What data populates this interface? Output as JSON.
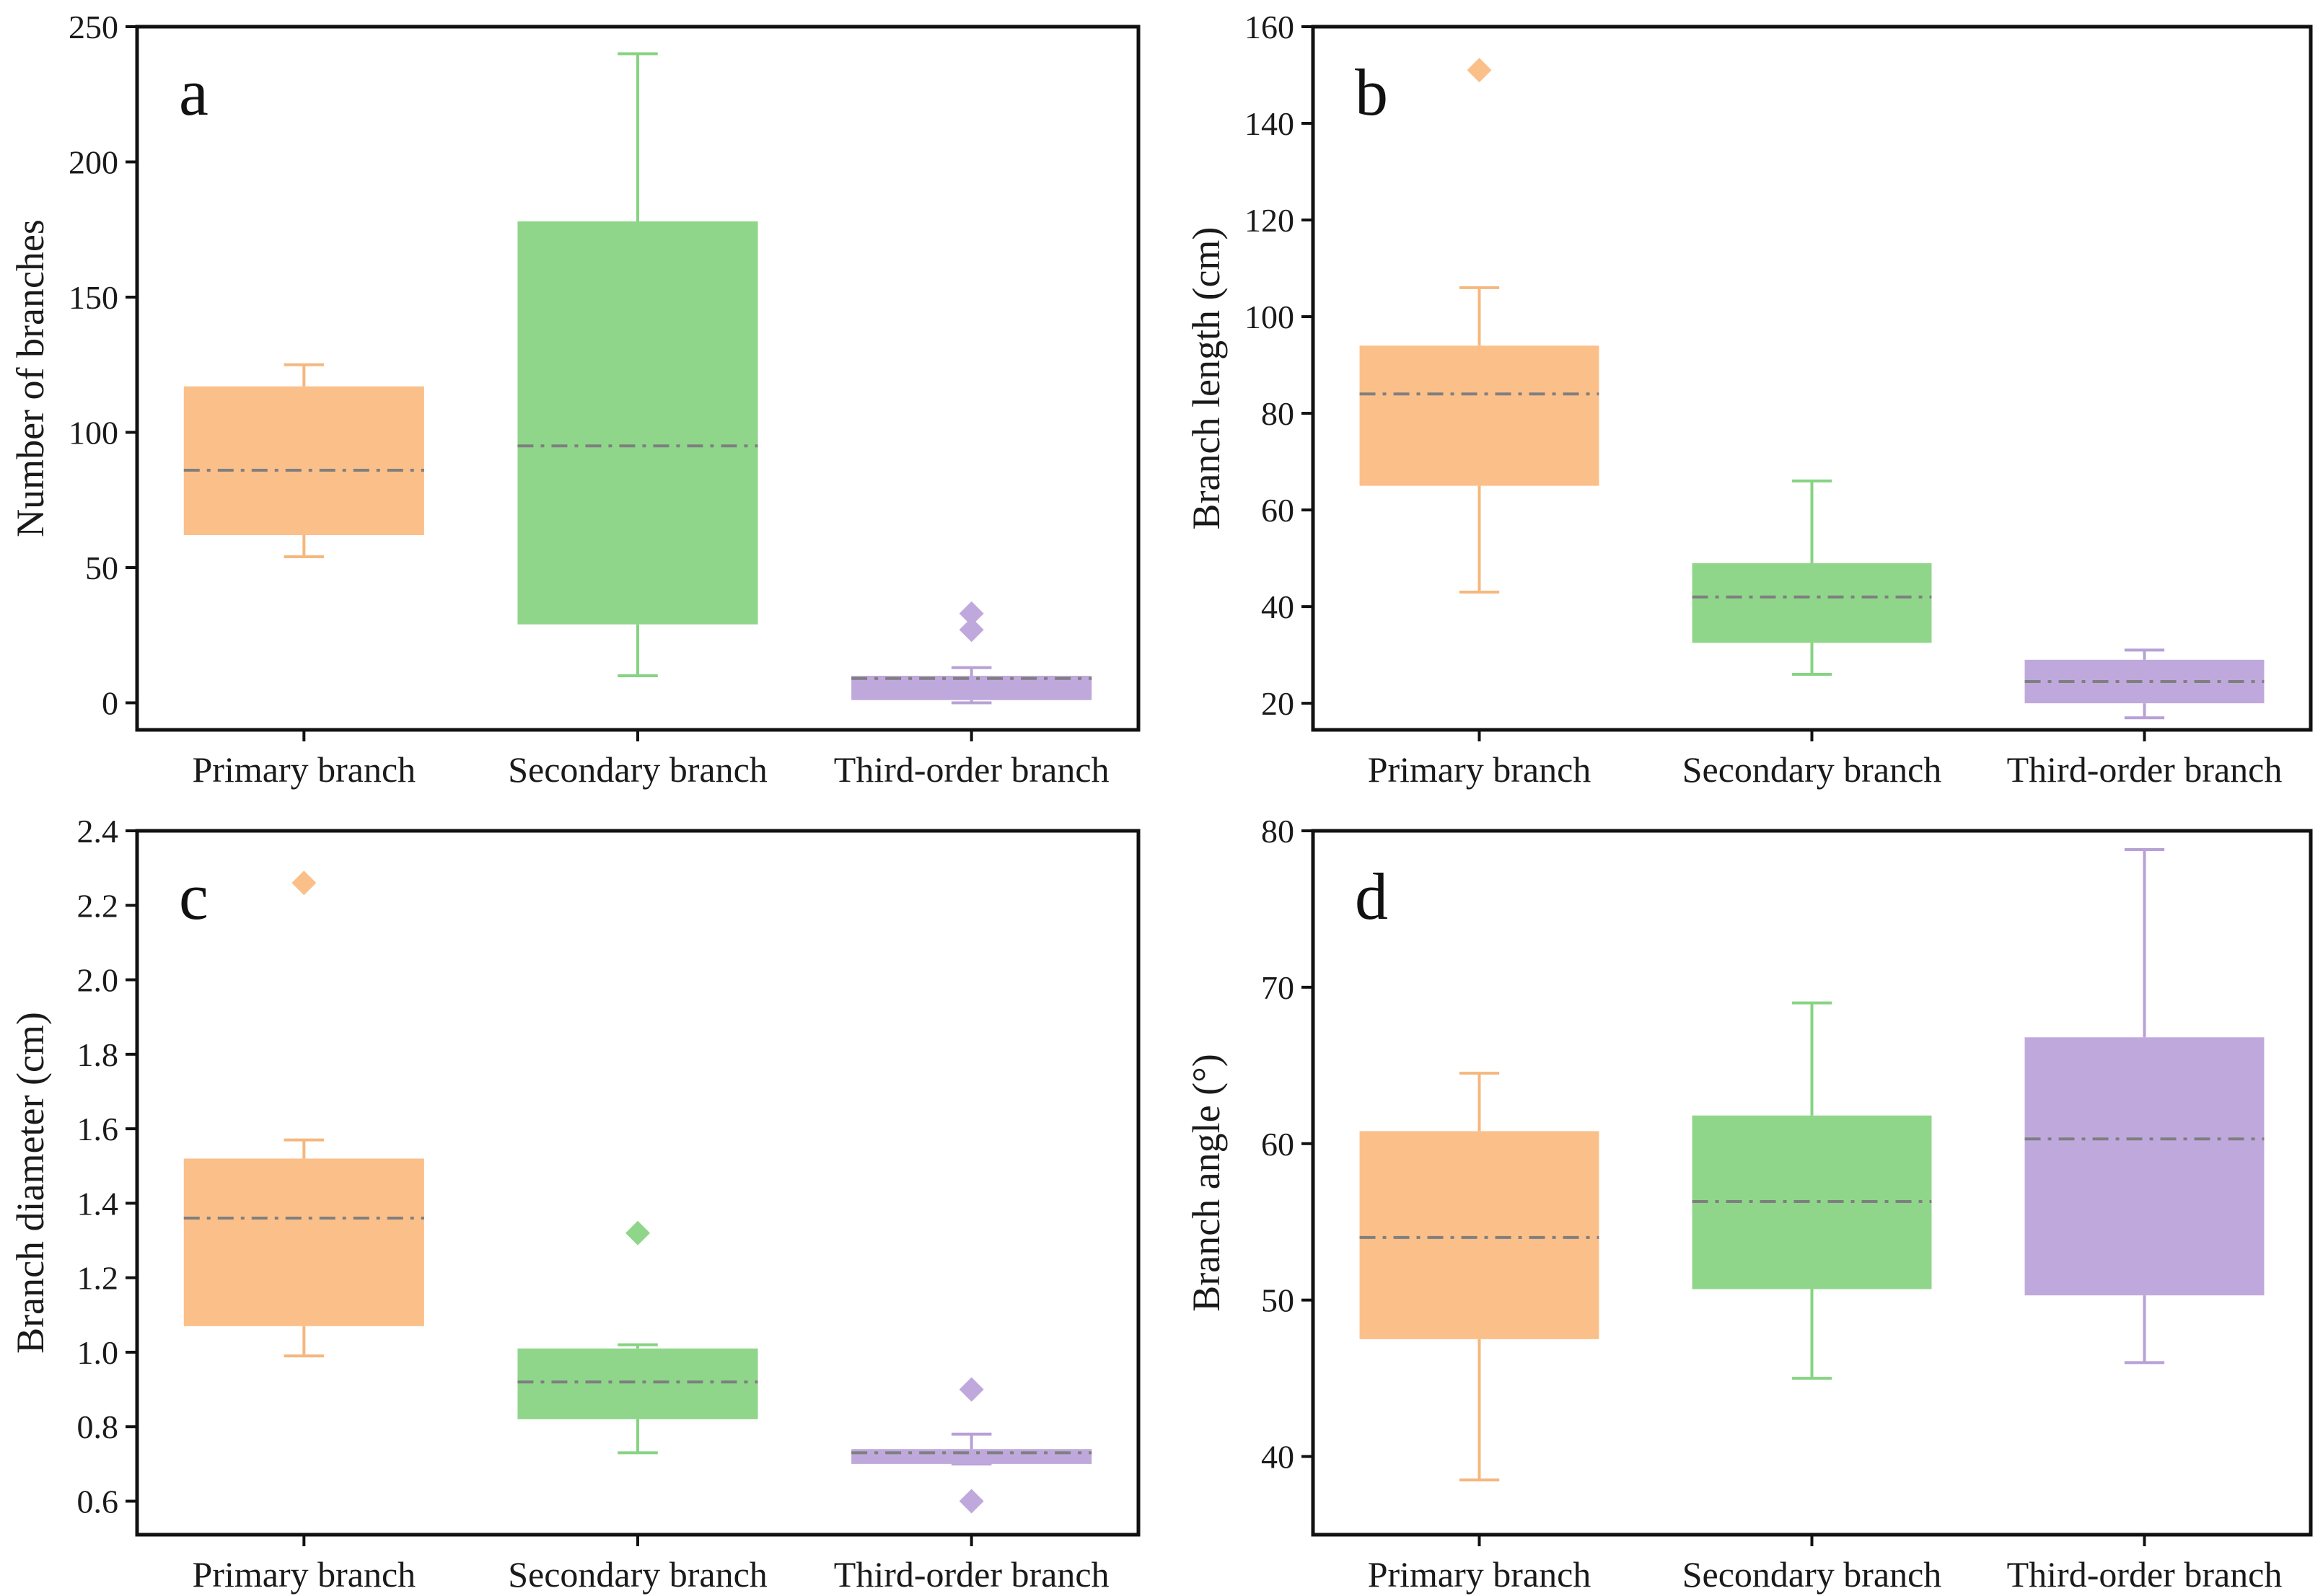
{
  "figure_caption": "",
  "colors": {
    "primary": "#fbbf8a",
    "primary_line": "#f5b77d",
    "secondary": "#8fd68b",
    "secondary_line": "#86d382",
    "third": "#bfa9dc",
    "third_line": "#b7a1d6",
    "mean_line": "#7f7f7f",
    "axis": "#111111"
  },
  "chart_data": [
    {
      "type": "box",
      "panel_letter": "a",
      "title": "",
      "xlabel": "",
      "ylabel": "Number of branches",
      "ylim": [
        -10,
        250
      ],
      "yticks": [
        0,
        50,
        100,
        150,
        200,
        250
      ],
      "ytick_labels": [
        "0",
        "50",
        "100",
        "150",
        "200",
        "250"
      ],
      "categories": [
        "Primary branch",
        "Secondary branch",
        "Third-order branch"
      ],
      "series": [
        {
          "name": "Primary branch",
          "color_key": "primary",
          "whisker_low": 54,
          "q1": 62,
          "mean": 86,
          "q3": 117,
          "whisker_high": 125,
          "outliers": []
        },
        {
          "name": "Secondary branch",
          "color_key": "secondary",
          "whisker_low": 10,
          "q1": 29,
          "mean": 95,
          "q3": 178,
          "whisker_high": 240,
          "outliers": []
        },
        {
          "name": "Third-order branch",
          "color_key": "third",
          "whisker_low": 0,
          "q1": 1,
          "mean": 9,
          "q3": 10,
          "whisker_high": 13,
          "outliers": [
            27,
            33
          ]
        }
      ]
    },
    {
      "type": "box",
      "panel_letter": "b",
      "title": "",
      "xlabel": "",
      "ylabel": "Branch length (cm)",
      "ylim": [
        14.5,
        160
      ],
      "yticks": [
        20,
        40,
        60,
        80,
        100,
        120,
        140,
        160
      ],
      "ytick_labels": [
        "20",
        "40",
        "60",
        "80",
        "100",
        "120",
        "140",
        "160"
      ],
      "categories": [
        "Primary branch",
        "Secondary branch",
        "Third-order branch"
      ],
      "series": [
        {
          "name": "Primary branch",
          "color_key": "primary",
          "whisker_low": 43,
          "q1": 65,
          "mean": 84,
          "q3": 94,
          "whisker_high": 106,
          "outliers": [
            151
          ]
        },
        {
          "name": "Secondary branch",
          "color_key": "secondary",
          "whisker_low": 26,
          "q1": 32.5,
          "mean": 42,
          "q3": 49,
          "whisker_high": 66,
          "outliers": []
        },
        {
          "name": "Third-order branch",
          "color_key": "third",
          "whisker_low": 17,
          "q1": 20,
          "mean": 24.5,
          "q3": 29,
          "whisker_high": 31,
          "outliers": []
        }
      ]
    },
    {
      "type": "box",
      "panel_letter": "c",
      "title": "",
      "xlabel": "",
      "ylabel": "Branch diameter (cm)",
      "ylim": [
        0.51,
        2.4
      ],
      "yticks": [
        0.6,
        0.8,
        1.0,
        1.2,
        1.4,
        1.6,
        1.8,
        2.0,
        2.2,
        2.4
      ],
      "ytick_labels": [
        "0.6",
        "0.8",
        "1.0",
        "1.2",
        "1.4",
        "1.6",
        "1.8",
        "2.0",
        "2.2",
        "2.4"
      ],
      "categories": [
        "Primary branch",
        "Secondary branch",
        "Third-order branch"
      ],
      "series": [
        {
          "name": "Primary branch",
          "color_key": "primary",
          "whisker_low": 0.99,
          "q1": 1.07,
          "mean": 1.36,
          "q3": 1.52,
          "whisker_high": 1.57,
          "outliers": [
            2.26
          ]
        },
        {
          "name": "Secondary branch",
          "color_key": "secondary",
          "whisker_low": 0.73,
          "q1": 0.82,
          "mean": 0.92,
          "q3": 1.01,
          "whisker_high": 1.02,
          "outliers": [
            1.32
          ]
        },
        {
          "name": "Third-order branch",
          "color_key": "third",
          "whisker_low": 0.7,
          "q1": 0.7,
          "mean": 0.73,
          "q3": 0.74,
          "whisker_high": 0.78,
          "outliers": [
            0.6,
            0.9
          ]
        }
      ]
    },
    {
      "type": "box",
      "panel_letter": "d",
      "title": "",
      "xlabel": "",
      "ylabel": "Branch angle (°)",
      "ylim": [
        35,
        80
      ],
      "yticks": [
        40,
        50,
        60,
        70,
        80
      ],
      "ytick_labels": [
        "40",
        "50",
        "60",
        "70",
        "80"
      ],
      "categories": [
        "Primary branch",
        "Secondary branch",
        "Third-order branch"
      ],
      "series": [
        {
          "name": "Primary branch",
          "color_key": "primary",
          "whisker_low": 38.5,
          "q1": 47.5,
          "mean": 54,
          "q3": 60.8,
          "whisker_high": 64.5,
          "outliers": []
        },
        {
          "name": "Secondary branch",
          "color_key": "secondary",
          "whisker_low": 45,
          "q1": 50.7,
          "mean": 56.3,
          "q3": 61.8,
          "whisker_high": 69,
          "outliers": []
        },
        {
          "name": "Third-order branch",
          "color_key": "third",
          "whisker_low": 46,
          "q1": 50.3,
          "mean": 60.3,
          "q3": 66.8,
          "whisker_high": 78.8,
          "outliers": []
        }
      ]
    }
  ]
}
